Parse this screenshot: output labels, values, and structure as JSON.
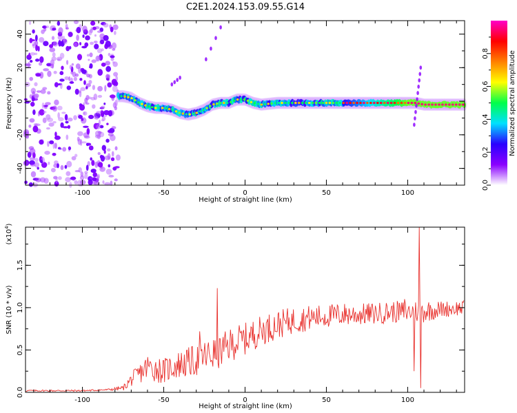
{
  "figure": {
    "title": "C2E1.2024.153.09.55.G14"
  },
  "colorbar": {
    "label": "Normalized spectral amplitude",
    "ticks": [
      "0.0",
      "0.2",
      "0.4",
      "0.6",
      "0.8"
    ],
    "tick_values": [
      0.0,
      0.2,
      0.4,
      0.6,
      0.8
    ],
    "range": [
      0,
      1
    ],
    "colormap": [
      "#ffffff",
      "#8a00ff",
      "#2a00ff",
      "#00e0ff",
      "#00ff4a",
      "#ffff00",
      "#ff8000",
      "#ff0000",
      "#ff00c8"
    ]
  },
  "chart_data": [
    {
      "type": "heatmap",
      "title": "",
      "xlabel": "Height of straight line (km)",
      "ylabel": "Frequency (Hz)",
      "xlim": [
        -135,
        135
      ],
      "ylim": [
        -50,
        48
      ],
      "xticks": [
        -100,
        -50,
        0,
        50,
        100
      ],
      "xtick_labels": [
        "-100",
        "-50",
        "0",
        "50",
        "100"
      ],
      "yticks": [
        -40,
        -20,
        0,
        20,
        40
      ],
      "ytick_labels": [
        "-40",
        "-20",
        "0",
        "20",
        "40"
      ],
      "grid": false,
      "ridge": {
        "x": [
          -75,
          -70,
          -65,
          -60,
          -55,
          -50,
          -45,
          -40,
          -35,
          -30,
          -25,
          -20,
          -15,
          -10,
          -5,
          0,
          5,
          10,
          20,
          30,
          40,
          50,
          60,
          70,
          80,
          90,
          100,
          105,
          110,
          120,
          135
        ],
        "freq": [
          3,
          2,
          -1,
          -3,
          -4,
          -4,
          -5,
          -7,
          -8,
          -7,
          -5,
          -2,
          -1,
          -1,
          1,
          1,
          -1,
          -2,
          -1,
          -1,
          -1,
          -1,
          -1,
          -1,
          -1,
          -1,
          -1,
          -1,
          -2,
          -2,
          -2
        ]
      },
      "scattered_noise_x_range": [
        -135,
        -78
      ],
      "features": [
        {
          "x": [
            -24,
            -15
          ],
          "freq": [
            25,
            44
          ],
          "note": "isolated faint points"
        },
        {
          "x": [
            -45,
            -40
          ],
          "freq": [
            10,
            14
          ],
          "note": "isolated points"
        },
        {
          "x": [
            104,
            108
          ],
          "freq": [
            -14,
            20
          ],
          "note": "vertical streak"
        }
      ]
    },
    {
      "type": "line",
      "title": "",
      "xlabel": "Height of straight line (km)",
      "ylabel": "SNR (10 * v/v)",
      "scale_note": "(x10",
      "scale_exp": "4",
      "scale_close": ")",
      "xlim": [
        -135,
        135
      ],
      "ylim": [
        0,
        1.95
      ],
      "xticks": [
        -100,
        -50,
        0,
        50,
        100
      ],
      "xtick_labels": [
        "-100",
        "-50",
        "0",
        "50",
        "100"
      ],
      "yticks": [
        0.0,
        0.5,
        1.0,
        1.5
      ],
      "ytick_labels": [
        "0.0",
        "0.5",
        "1.0",
        "1.5"
      ],
      "grid": false,
      "series": [
        {
          "color": "#e8302c",
          "x": [
            -135,
            -120,
            -100,
            -85,
            -75,
            -70,
            -65,
            -60,
            -55,
            -50,
            -45,
            -40,
            -35,
            -30,
            -25,
            -20,
            -15,
            -10,
            -5,
            0,
            10,
            20,
            30,
            40,
            50,
            60,
            70,
            80,
            90,
            100,
            110,
            120,
            135
          ],
          "base": [
            0.02,
            0.02,
            0.02,
            0.03,
            0.05,
            0.15,
            0.22,
            0.3,
            0.28,
            0.25,
            0.3,
            0.33,
            0.35,
            0.38,
            0.42,
            0.45,
            0.48,
            0.55,
            0.6,
            0.63,
            0.73,
            0.8,
            0.85,
            0.88,
            0.9,
            0.92,
            0.92,
            0.93,
            0.95,
            0.95,
            0.96,
            0.98,
            1.0
          ],
          "amp": [
            0.01,
            0.01,
            0.01,
            0.01,
            0.03,
            0.08,
            0.12,
            0.16,
            0.16,
            0.15,
            0.16,
            0.17,
            0.18,
            0.19,
            0.2,
            0.2,
            0.2,
            0.2,
            0.2,
            0.19,
            0.18,
            0.17,
            0.16,
            0.15,
            0.14,
            0.14,
            0.13,
            0.13,
            0.13,
            0.13,
            0.14,
            0.1,
            0.09
          ]
        }
      ],
      "peaks": [
        {
          "x": -28,
          "y": 0.72
        },
        {
          "x": -17,
          "y": 1.23
        },
        {
          "x": 98,
          "y": 1.1
        },
        {
          "x": 104,
          "y": 1.87
        },
        {
          "x": 107,
          "y": 1.95
        }
      ],
      "dips": [
        {
          "x": 104,
          "y": 0.25
        },
        {
          "x": 108,
          "y": 0.05
        }
      ]
    }
  ]
}
